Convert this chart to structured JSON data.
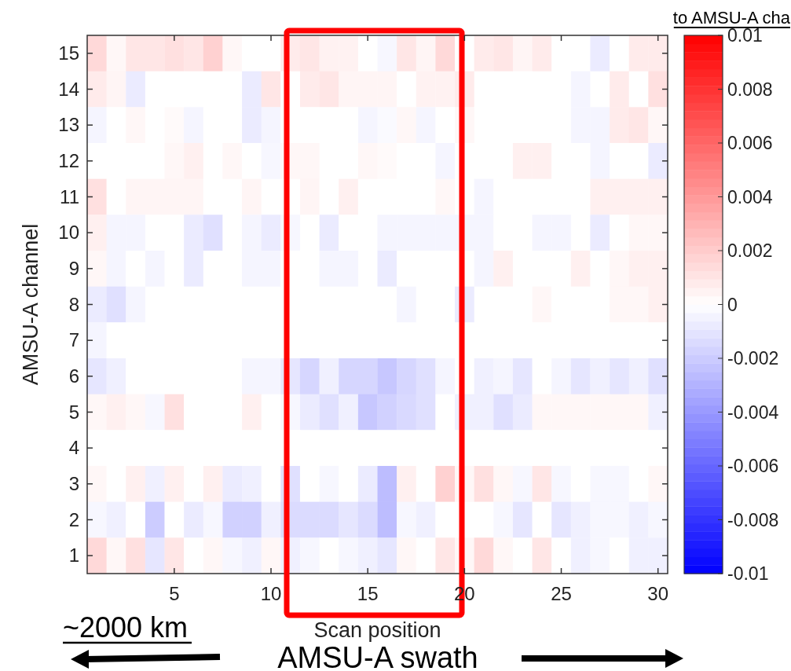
{
  "chart_data": {
    "type": "heatmap",
    "xlabel": "Scan position",
    "ylabel": "AMSU-A channel",
    "categories": [
      null,
      null,
      null,
      null,
      "5",
      null,
      null,
      null,
      null,
      "10",
      null,
      null,
      null,
      null,
      "15",
      null,
      null,
      null,
      null,
      "20",
      null,
      null,
      null,
      null,
      "25",
      null,
      null,
      null,
      null,
      "30"
    ],
    "y_categories": [
      "15",
      "14",
      "13",
      "12",
      "11",
      "10",
      "9",
      "8",
      "7",
      "6",
      "5",
      "4",
      "3",
      "2",
      "1"
    ],
    "cells": [
      [
        0.0015,
        0.0003,
        0.001,
        0.001,
        0.0012,
        0.001,
        0.0018,
        0.0003,
        0,
        0,
        0.0008,
        0.001,
        0.0005,
        0.0005,
        0,
        -0.0003,
        0.001,
        0.0004,
        0.0015,
        0,
        0.0008,
        0.001,
        0.0004,
        0.0008,
        0,
        0,
        -0.0008,
        0,
        0.0008,
        0.0008
      ],
      [
        0.0008,
        0.0004,
        -0.0008,
        0,
        0,
        0,
        0,
        0,
        -0.0008,
        0.001,
        0,
        0.0008,
        0.001,
        0.0004,
        0.0004,
        0.0004,
        0,
        0.0005,
        0.0005,
        0.0008,
        0,
        0,
        0,
        0,
        0,
        -0.0004,
        0,
        0.0008,
        0,
        0.0012
      ],
      [
        -0.0004,
        0,
        0.0003,
        0,
        0.0002,
        -0.0004,
        0,
        0,
        -0.0008,
        -0.0004,
        0,
        0,
        0,
        0,
        -0.0004,
        -0.0002,
        0.0003,
        -0.0004,
        0,
        0.0003,
        0,
        0,
        0,
        0,
        0,
        -0.0004,
        -0.0004,
        0.0008,
        0.001,
        0.0003
      ],
      [
        0,
        0,
        0,
        0,
        0.0003,
        0.0006,
        0,
        0.0003,
        0,
        -0.0003,
        0.0003,
        0.0003,
        0,
        0,
        0.0003,
        0.0002,
        0,
        0,
        -0.0004,
        0,
        0,
        0,
        0.0006,
        0.0006,
        0,
        0,
        -0.0004,
        0,
        0,
        -0.0008
      ],
      [
        0.0012,
        0,
        0.0004,
        0.0004,
        0.0004,
        0.0004,
        0,
        0,
        0.0004,
        0,
        0,
        0.0004,
        0,
        0.0006,
        0,
        0,
        0,
        0,
        0.0003,
        0,
        -0.0004,
        0,
        0,
        0,
        0,
        0,
        0.0006,
        0.0006,
        0.0006,
        0.0006
      ],
      [
        0.0006,
        -0.0004,
        -0.0004,
        0,
        0,
        -0.0008,
        -0.0012,
        0,
        -0.0004,
        -0.0008,
        -0.0003,
        0,
        -0.0008,
        0,
        0,
        -0.0004,
        -0.0004,
        -0.0004,
        -0.0004,
        -0.0004,
        -0.0004,
        0,
        0,
        -0.0004,
        -0.0004,
        0,
        -0.0008,
        0,
        0.0003,
        0.0003
      ],
      [
        0.0003,
        -0.0004,
        0,
        -0.0004,
        0,
        -0.0008,
        0,
        0,
        -0.0004,
        -0.0004,
        0,
        0,
        -0.0004,
        -0.0004,
        0,
        -0.0008,
        0,
        0,
        0,
        0,
        -0.0004,
        0.0006,
        0,
        0,
        0,
        0.0006,
        0,
        0.0003,
        0.0006,
        0.0006
      ],
      [
        -0.0008,
        -0.0012,
        -0.0004,
        0,
        0,
        0,
        0,
        0,
        0,
        0,
        0,
        0,
        0,
        0,
        0,
        0,
        -0.0004,
        0,
        0,
        -0.0008,
        0,
        0,
        0,
        0.0003,
        0,
        0,
        0,
        0.0003,
        0.0003,
        0.0006
      ],
      [
        -0.0004,
        0,
        0,
        0,
        0,
        0,
        0,
        0,
        0,
        0,
        0,
        0,
        0,
        0,
        0,
        0,
        0,
        0,
        0,
        0,
        0,
        0,
        0,
        0,
        0,
        0,
        0,
        0,
        0,
        0
      ],
      [
        -0.001,
        -0.0006,
        0,
        0,
        0,
        0,
        0,
        0,
        -0.0004,
        -0.0004,
        -0.001,
        -0.0016,
        -0.0006,
        -0.0016,
        -0.0016,
        -0.0022,
        -0.0016,
        -0.0012,
        -0.0004,
        0,
        -0.0006,
        -0.0004,
        -0.001,
        0,
        -0.0004,
        -0.001,
        -0.0006,
        -0.001,
        -0.0006,
        -0.0012
      ],
      [
        0.0003,
        0.0006,
        0.0003,
        -0.0003,
        0.0012,
        0,
        0,
        0,
        0.0006,
        0,
        -0.0003,
        -0.0008,
        -0.0012,
        -0.0006,
        -0.0022,
        -0.0018,
        -0.0015,
        -0.0012,
        0,
        -0.0006,
        -0.0006,
        -0.0012,
        -0.0008,
        0.0003,
        0.0003,
        0.0003,
        0.0003,
        0.0003,
        0.0003,
        -0.0006
      ],
      [
        0,
        0,
        0,
        0,
        0,
        0,
        0,
        0,
        0,
        0,
        0,
        0,
        0,
        0,
        0,
        0,
        0,
        0,
        0,
        0,
        0,
        0,
        0,
        0,
        0,
        0,
        0,
        0,
        0,
        0
      ],
      [
        0.0003,
        0,
        0.0006,
        -0.0006,
        0.0006,
        0,
        0.0006,
        -0.0008,
        -0.0006,
        0,
        -0.0012,
        0,
        -0.0003,
        0,
        -0.0008,
        -0.0026,
        0.0006,
        0,
        0.0018,
        0.0003,
        0.0012,
        0.0003,
        -0.0003,
        0.001,
        -0.0003,
        0,
        -0.0003,
        -0.0003,
        0,
        0.0003
      ],
      [
        -0.0003,
        -0.0006,
        0,
        -0.002,
        0,
        -0.0008,
        -0.0003,
        -0.0018,
        -0.0018,
        -0.0006,
        -0.0014,
        -0.0014,
        -0.0014,
        -0.001,
        -0.0014,
        -0.0026,
        -0.0003,
        -0.0006,
        0,
        0,
        0,
        -0.0003,
        -0.001,
        0,
        -0.001,
        -0.0006,
        -0.0003,
        -0.0003,
        -0.0006,
        -0.0003
      ],
      [
        0.0015,
        0.0003,
        0.0012,
        -0.001,
        0.001,
        0,
        0.0003,
        -0.0003,
        -0.0006,
        0.0003,
        -0.0006,
        -0.0003,
        0,
        -0.0003,
        -0.0006,
        -0.001,
        0.0003,
        0,
        0.001,
        0.0003,
        0.0015,
        0.0003,
        0,
        0.001,
        0,
        -0.0006,
        -0.0003,
        0,
        -0.0006,
        -0.0006
      ]
    ],
    "clim": [
      -0.01,
      0.01
    ],
    "cticks": [
      -0.01,
      -0.008,
      -0.006,
      -0.004,
      -0.002,
      0,
      0.002,
      0.004,
      0.006,
      0.008,
      0.01
    ],
    "annotations": [
      "to AMSU-A cha",
      "~2000 km",
      "AMSU-A swath"
    ]
  }
}
